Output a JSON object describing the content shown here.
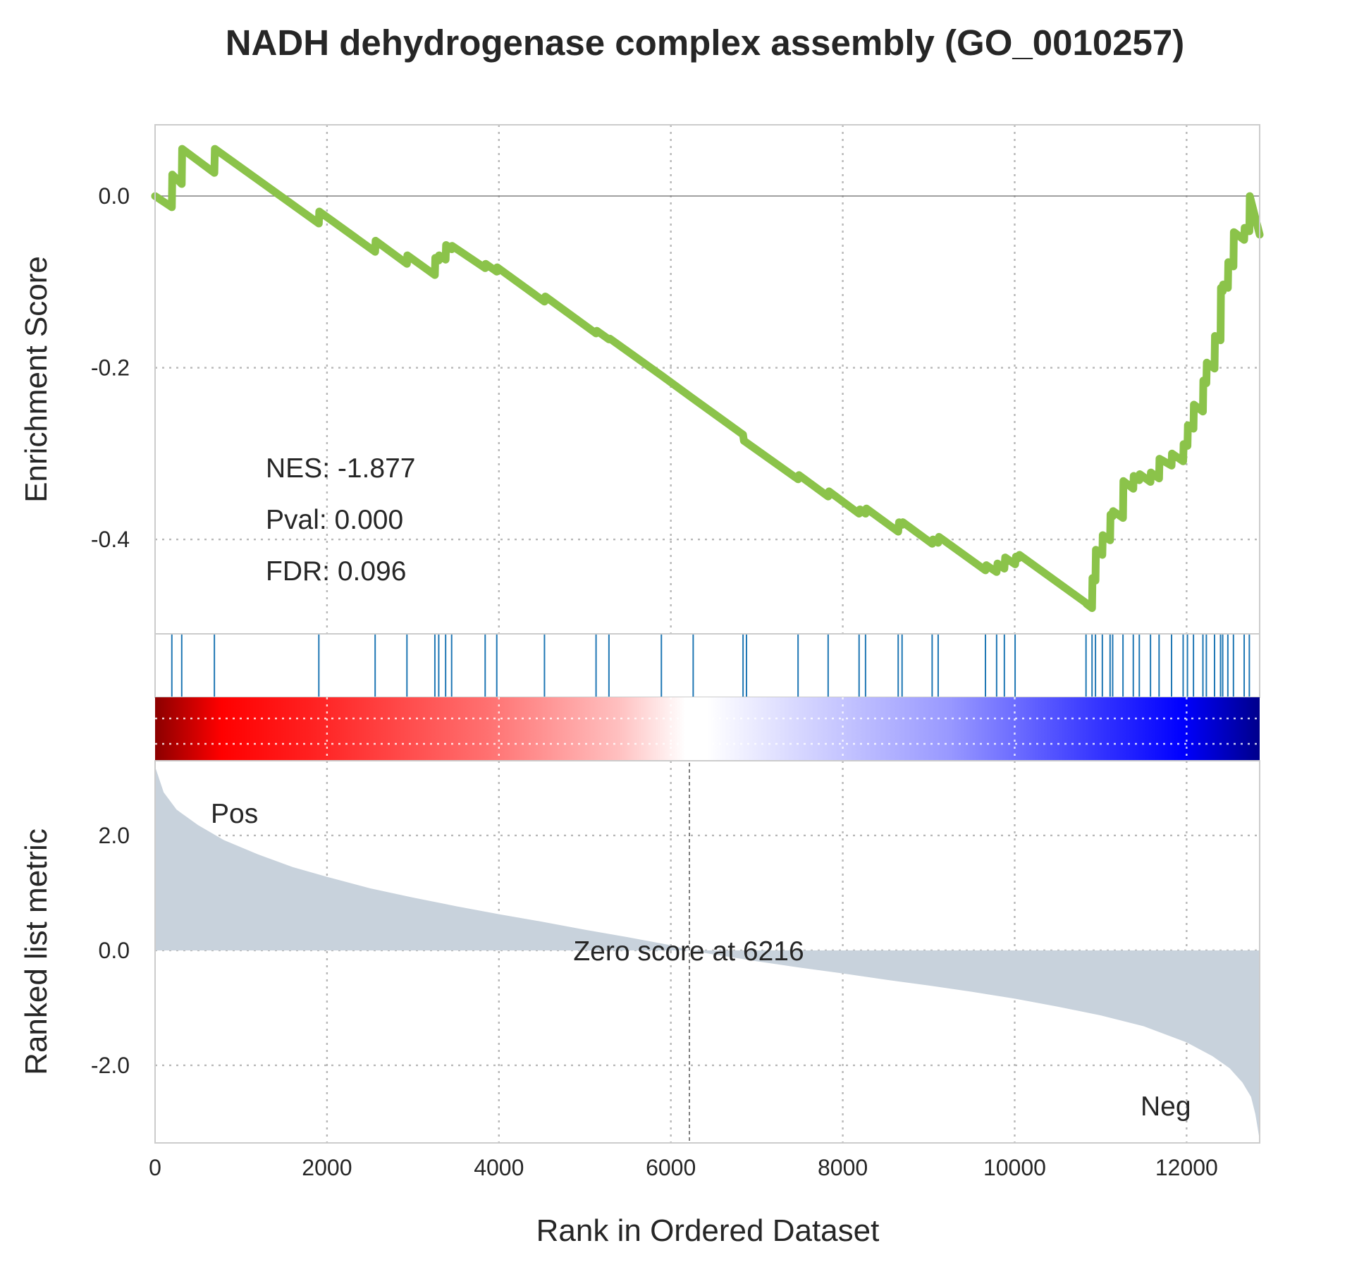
{
  "title": "NADH dehydrogenase complex assembly (GO_0010257)",
  "stats": {
    "nes": "NES: -1.877",
    "pval": "Pval: 0.000",
    "fdr": "FDR: 0.096"
  },
  "labels": {
    "pos": "Pos",
    "neg": "Neg",
    "zero_score": "Zero score at 6216"
  },
  "colors": {
    "es_line": "#8bc34a",
    "hit_ticks": "#1f77b4",
    "metric_fill": "#c8d2dc",
    "pos_label": "#ff0000",
    "neg_label": "#0000ff"
  },
  "chart_data": [
    {
      "type": "line",
      "name": "enrichment-score",
      "ylabel": "Enrichment Score",
      "xlim": [
        0,
        12850
      ],
      "ylim": [
        -0.51,
        0.083
      ],
      "yticks": [
        0.0,
        -0.2,
        -0.4
      ],
      "ytick_labels": [
        "0.0",
        "-0.2",
        "-0.4"
      ],
      "grid": true,
      "x": [
        0,
        195,
        200,
        310,
        315,
        690,
        695,
        1905,
        1910,
        2560,
        2565,
        2930,
        2935,
        3255,
        3260,
        3300,
        3305,
        3380,
        3385,
        3450,
        3455,
        3840,
        3845,
        3975,
        3980,
        4530,
        4540,
        5130,
        5140,
        5280,
        5290,
        5890,
        6260,
        6840,
        6850,
        7480,
        7490,
        7830,
        7840,
        8190,
        8200,
        8265,
        8275,
        8645,
        8655,
        8690,
        8700,
        9040,
        9050,
        9110,
        9120,
        9660,
        9670,
        9790,
        9800,
        9880,
        9890,
        10005,
        10015,
        10045,
        10055,
        10830,
        10835,
        10900,
        10905,
        10940,
        10945,
        11020,
        11025,
        11110,
        11115,
        11140,
        11145,
        11260,
        11265,
        11380,
        11385,
        11450,
        11455,
        11580,
        11585,
        11680,
        11685,
        11825,
        11830,
        11960,
        11965,
        12010,
        12015,
        12080,
        12085,
        12190,
        12195,
        12230,
        12235,
        12325,
        12330,
        12395,
        12400,
        12420,
        12425,
        12480,
        12485,
        12545,
        12550,
        12670,
        12675,
        12730,
        12735,
        12850
      ],
      "y": [
        0.0,
        -0.013,
        0.025,
        0.014,
        0.055,
        0.027,
        0.055,
        -0.032,
        -0.018,
        -0.065,
        -0.052,
        -0.079,
        -0.069,
        -0.092,
        -0.072,
        -0.075,
        -0.069,
        -0.074,
        -0.057,
        -0.062,
        -0.058,
        -0.084,
        -0.079,
        -0.088,
        -0.083,
        -0.123,
        -0.117,
        -0.16,
        -0.157,
        -0.167,
        -0.166,
        -0.209,
        -0.236,
        -0.278,
        -0.285,
        -0.33,
        -0.325,
        -0.35,
        -0.344,
        -0.37,
        -0.365,
        -0.37,
        -0.364,
        -0.391,
        -0.38,
        -0.383,
        -0.38,
        -0.405,
        -0.4,
        -0.404,
        -0.397,
        -0.436,
        -0.43,
        -0.438,
        -0.428,
        -0.434,
        -0.421,
        -0.429,
        -0.42,
        -0.422,
        -0.418,
        -0.474,
        -0.475,
        -0.48,
        -0.445,
        -0.448,
        -0.412,
        -0.418,
        -0.395,
        -0.401,
        -0.371,
        -0.373,
        -0.367,
        -0.375,
        -0.332,
        -0.341,
        -0.326,
        -0.331,
        -0.324,
        -0.333,
        -0.322,
        -0.329,
        -0.306,
        -0.314,
        -0.3,
        -0.309,
        -0.289,
        -0.291,
        -0.267,
        -0.271,
        -0.243,
        -0.251,
        -0.215,
        -0.218,
        -0.194,
        -0.201,
        -0.163,
        -0.168,
        -0.107,
        -0.111,
        -0.103,
        -0.107,
        -0.077,
        -0.082,
        -0.042,
        -0.051,
        -0.037,
        -0.041,
        0.0,
        -0.045
      ]
    },
    {
      "type": "scatter",
      "name": "hit-positions",
      "x": [
        195,
        310,
        690,
        1905,
        2560,
        2930,
        3255,
        3300,
        3380,
        3450,
        3840,
        3975,
        4530,
        5130,
        5280,
        5890,
        6260,
        6840,
        6880,
        7480,
        7830,
        8190,
        8265,
        8645,
        8690,
        9040,
        9110,
        9660,
        9790,
        9880,
        10005,
        10830,
        10900,
        10940,
        11020,
        11110,
        11140,
        11260,
        11380,
        11450,
        11580,
        11680,
        11825,
        11960,
        12010,
        12080,
        12190,
        12230,
        12325,
        12395,
        12420,
        12480,
        12545,
        12670,
        12730,
        12850
      ]
    },
    {
      "type": "area",
      "name": "ranked-list-metric",
      "xlabel": "Rank in Ordered Dataset",
      "ylabel": "Ranked list metric",
      "xlim": [
        0,
        12850
      ],
      "ylim": [
        -3.35,
        3.3
      ],
      "xticks": [
        0,
        2000,
        4000,
        6000,
        8000,
        10000,
        12000
      ],
      "xtick_labels": [
        "0",
        "2000",
        "4000",
        "6000",
        "8000",
        "10000",
        "12000"
      ],
      "yticks": [
        2.0,
        0.0,
        -2.0
      ],
      "ytick_labels": [
        "2.0",
        "0.0",
        "-2.0"
      ],
      "grid": true,
      "zero_cross": 6216,
      "x": [
        0,
        100,
        250,
        500,
        800,
        1200,
        1600,
        2000,
        2500,
        3000,
        3500,
        4000,
        4500,
        5000,
        5500,
        6000,
        6216,
        6500,
        7000,
        7500,
        8000,
        8500,
        9000,
        9500,
        10000,
        10500,
        11000,
        11500,
        12000,
        12300,
        12500,
        12650,
        12750,
        12800,
        12850
      ],
      "y": [
        3.2,
        2.75,
        2.45,
        2.18,
        1.92,
        1.67,
        1.45,
        1.28,
        1.08,
        0.92,
        0.77,
        0.63,
        0.5,
        0.36,
        0.23,
        0.09,
        0.0,
        -0.07,
        -0.19,
        -0.3,
        -0.4,
        -0.51,
        -0.61,
        -0.72,
        -0.84,
        -0.98,
        -1.13,
        -1.32,
        -1.6,
        -1.84,
        -2.05,
        -2.3,
        -2.55,
        -2.85,
        -3.3
      ]
    }
  ]
}
